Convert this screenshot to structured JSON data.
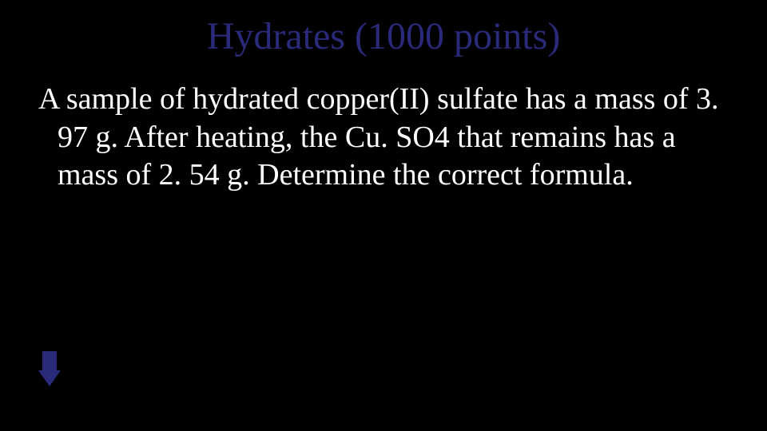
{
  "slide": {
    "title": "Hydrates (1000 points)",
    "body": "A sample of hydrated copper(II) sulfate has a mass of 3. 97 g. After heating, the Cu. SO4 that remains has a mass of 2. 54 g. Determine the correct formula."
  },
  "colors": {
    "background": "#000000",
    "title_color": "#2a2a7a",
    "body_color": "#ffffff",
    "arrow_color": "#2a2a7a"
  },
  "typography": {
    "title_fontsize": 48,
    "body_fontsize": 38,
    "font_family": "Times New Roman"
  }
}
